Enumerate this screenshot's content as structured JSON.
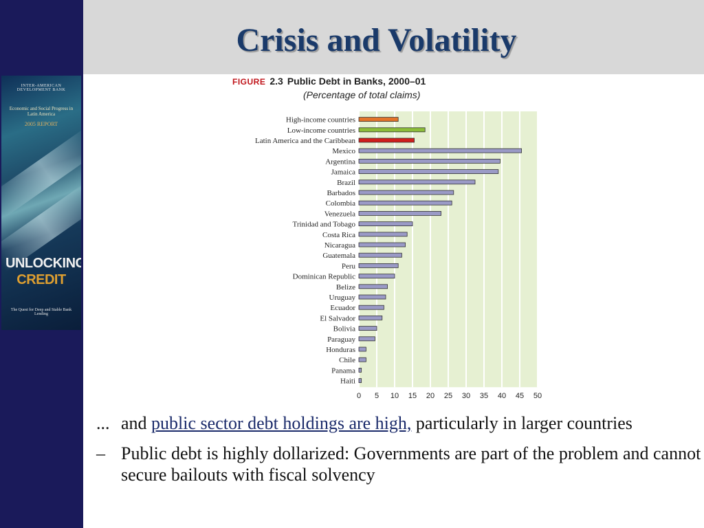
{
  "slide": {
    "title": "Crisis and Volatility"
  },
  "book_cover": {
    "org": "INTER-AMERICAN DEVELOPMENT BANK",
    "subtitle": "Economic and Social Progress in Latin America",
    "report": "2005 REPORT",
    "title_line1": "UNLOCKING",
    "title_line2": "CREDIT",
    "tagline": "The Quest for Deep and Stable Bank Lending"
  },
  "figure": {
    "label": "FIGURE",
    "number": "2.3",
    "title": "Public Debt in Banks, 2000–01",
    "subtitle": "(Percentage of total claims)"
  },
  "chart_data": {
    "type": "bar",
    "orientation": "horizontal",
    "title": "Public Debt in Banks, 2000–01",
    "subtitle": "(Percentage of total claims)",
    "xlim": [
      0,
      50
    ],
    "x_ticks": [
      0,
      5,
      10,
      15,
      20,
      25,
      30,
      35,
      40,
      45,
      50
    ],
    "grid": true,
    "categories": [
      "High-income countries",
      "Low-income countries",
      "Latin America and the Caribbean",
      "Mexico",
      "Argentina",
      "Jamaica",
      "Brazil",
      "Barbados",
      "Colombia",
      "Venezuela",
      "Trinidad and Tobago",
      "Costa Rica",
      "Nicaragua",
      "Guatemala",
      "Peru",
      "Dominican Republic",
      "Belize",
      "Uruguay",
      "Ecuador",
      "El Salvador",
      "Bolivia",
      "Paraguay",
      "Honduras",
      "Chile",
      "Panama",
      "Haiti"
    ],
    "values": [
      11,
      18.5,
      15.5,
      45.5,
      39.5,
      39,
      32.5,
      26.5,
      26,
      23,
      15,
      13.5,
      13,
      12,
      11,
      10,
      8,
      7.5,
      7,
      6.5,
      5,
      4.5,
      2,
      2,
      0.7,
      0.7
    ],
    "bar_colors": [
      "#e3742a",
      "#8cbd3a",
      "#d01f1c",
      "#9a9ac6",
      "#9a9ac6",
      "#9a9ac6",
      "#9a9ac6",
      "#9a9ac6",
      "#9a9ac6",
      "#9a9ac6",
      "#9a9ac6",
      "#9a9ac6",
      "#9a9ac6",
      "#9a9ac6",
      "#9a9ac6",
      "#9a9ac6",
      "#9a9ac6",
      "#9a9ac6",
      "#9a9ac6",
      "#9a9ac6",
      "#9a9ac6",
      "#9a9ac6",
      "#9a9ac6",
      "#9a9ac6",
      "#9a9ac6",
      "#9a9ac6"
    ],
    "plot_background": "#e6f0d2"
  },
  "bullets": [
    {
      "marker": "...",
      "pre": "and ",
      "link": "public sector debt holdings are high,",
      "post": " particularly in larger countries"
    },
    {
      "marker": "–",
      "text": "Public debt is highly dollarized: Governments are part of the problem and cannot secure bailouts with fiscal solvency"
    }
  ],
  "colors": {
    "left_band": "#1a1a5a",
    "title_band": "#d8d8d8",
    "title_text": "#1a3a6a",
    "figure_label": "#c0141a"
  }
}
